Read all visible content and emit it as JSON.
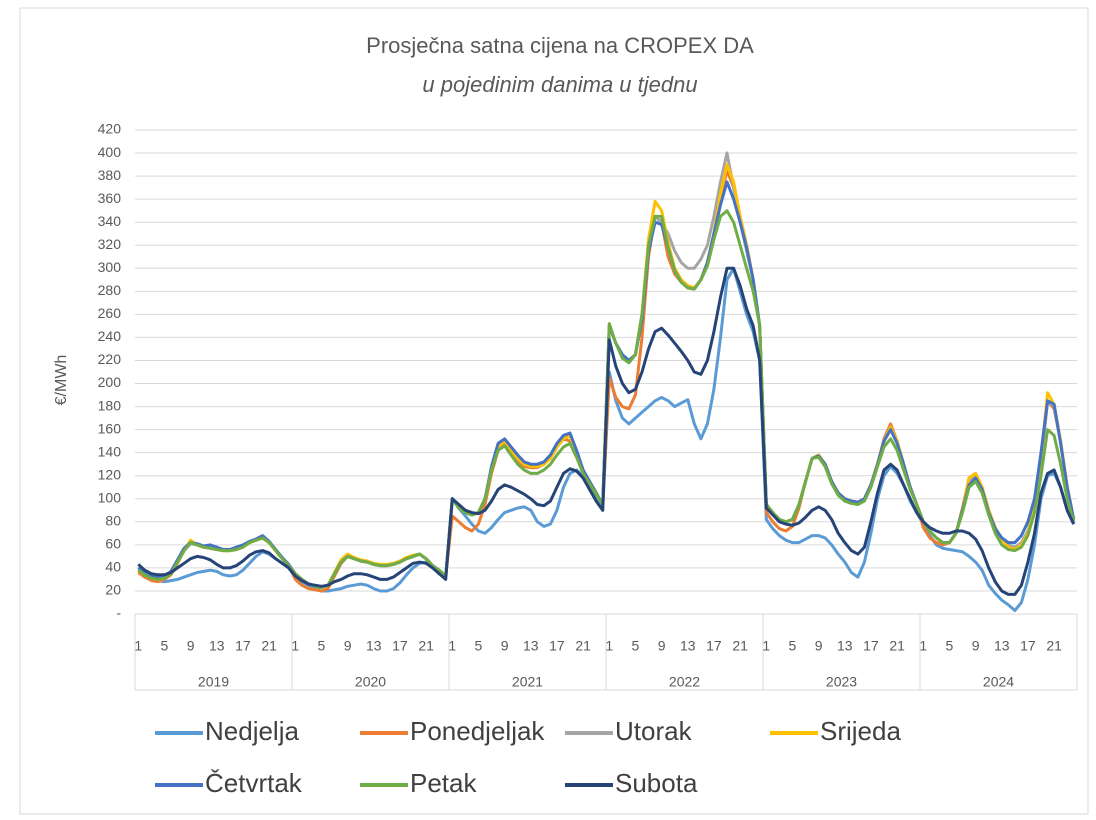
{
  "chart_data": {
    "type": "line",
    "title": "Prosječna satna cijena na CROPEX DA",
    "subtitle": "u pojedinim danima u tjednu",
    "y_label": "€/MWh",
    "categories": [
      "1",
      null,
      null,
      null,
      "5",
      null,
      null,
      null,
      "9",
      null,
      null,
      null,
      "13",
      null,
      null,
      null,
      "17",
      null,
      null,
      null,
      "21",
      null,
      null,
      null,
      "1",
      null,
      null,
      null,
      "5",
      null,
      null,
      null,
      "9",
      null,
      null,
      null,
      "13",
      null,
      null,
      null,
      "17",
      null,
      null,
      null,
      "21",
      null,
      null,
      null,
      "1",
      null,
      null,
      null,
      "5",
      null,
      null,
      null,
      "9",
      null,
      null,
      null,
      "13",
      null,
      null,
      null,
      "17",
      null,
      null,
      null,
      "21",
      null,
      null,
      null,
      "1",
      null,
      null,
      null,
      "5",
      null,
      null,
      null,
      "9",
      null,
      null,
      null,
      "13",
      null,
      null,
      null,
      "17",
      null,
      null,
      null,
      "21",
      null,
      null,
      null,
      "1",
      null,
      null,
      null,
      "5",
      null,
      null,
      null,
      "9",
      null,
      null,
      null,
      "13",
      null,
      null,
      null,
      "17",
      null,
      null,
      null,
      "21",
      null,
      null,
      null,
      "1",
      null,
      null,
      null,
      "5",
      null,
      null,
      null,
      "9",
      null,
      null,
      null,
      "13",
      null,
      null,
      null,
      "17",
      null,
      null,
      null,
      "21",
      null,
      null,
      null
    ],
    "x_groups": [
      "2019",
      "2020",
      "2021",
      "2022",
      "2023",
      "2024"
    ],
    "ylim": [
      0,
      420
    ],
    "yticks": [
      {
        "value": 0,
        "label": "-"
      },
      20,
      40,
      60,
      80,
      100,
      120,
      140,
      160,
      180,
      200,
      220,
      240,
      260,
      280,
      300,
      320,
      340,
      360,
      380,
      400,
      420
    ],
    "grid": true,
    "legend": "bottom",
    "series": [
      {
        "name": "Nedjelja",
        "color": "#5b9bd5",
        "values": [
          38,
          33,
          30,
          29,
          28,
          29,
          30,
          32,
          34,
          36,
          37,
          38,
          37,
          34,
          33,
          34,
          38,
          44,
          50,
          54,
          52,
          48,
          44,
          40,
          32,
          28,
          25,
          22,
          20,
          20,
          21,
          22,
          24,
          25,
          26,
          25,
          22,
          20,
          20,
          22,
          27,
          34,
          40,
          44,
          45,
          42,
          36,
          32,
          100,
          92,
          85,
          78,
          72,
          70,
          75,
          82,
          88,
          90,
          92,
          93,
          90,
          80,
          76,
          78,
          90,
          110,
          122,
          125,
          120,
          112,
          100,
          90,
          210,
          185,
          170,
          165,
          170,
          175,
          180,
          185,
          188,
          185,
          180,
          183,
          186,
          165,
          152,
          165,
          195,
          240,
          290,
          300,
          280,
          260,
          245,
          220,
          82,
          74,
          68,
          64,
          62,
          62,
          65,
          68,
          68,
          66,
          60,
          52,
          45,
          36,
          32,
          45,
          70,
          100,
          120,
          128,
          122,
          112,
          98,
          88,
          78,
          68,
          60,
          57,
          56,
          55,
          54,
          50,
          45,
          38,
          25,
          18,
          12,
          8,
          3,
          10,
          30,
          60,
          100,
          120,
          122,
          110,
          90,
          78
        ]
      },
      {
        "name": "Ponedjeljak",
        "color": "#ed7d31",
        "values": [
          36,
          32,
          29,
          28,
          30,
          34,
          44,
          55,
          62,
          60,
          58,
          57,
          56,
          55,
          55,
          56,
          58,
          62,
          64,
          66,
          62,
          55,
          48,
          42,
          30,
          25,
          22,
          21,
          20,
          22,
          33,
          44,
          50,
          48,
          46,
          45,
          43,
          42,
          42,
          43,
          45,
          48,
          50,
          52,
          48,
          42,
          38,
          33,
          85,
          80,
          75,
          72,
          78,
          95,
          122,
          142,
          148,
          140,
          133,
          128,
          127,
          127,
          130,
          135,
          145,
          152,
          150,
          138,
          125,
          115,
          105,
          95,
          205,
          188,
          180,
          178,
          190,
          240,
          310,
          345,
          340,
          310,
          295,
          288,
          283,
          282,
          290,
          305,
          330,
          360,
          385,
          370,
          345,
          320,
          290,
          250,
          88,
          80,
          74,
          72,
          76,
          92,
          115,
          135,
          138,
          130,
          115,
          105,
          100,
          98,
          97,
          100,
          112,
          130,
          152,
          165,
          150,
          130,
          110,
          95,
          75,
          66,
          62,
          60,
          62,
          70,
          92,
          118,
          122,
          110,
          90,
          75,
          65,
          58,
          56,
          60,
          70,
          90,
          130,
          185,
          178,
          150,
          110,
          82
        ]
      },
      {
        "name": "Utorak",
        "color": "#a5a5a5",
        "values": [
          38,
          34,
          31,
          30,
          31,
          35,
          45,
          55,
          61,
          60,
          58,
          57,
          56,
          55,
          55,
          56,
          58,
          62,
          64,
          66,
          62,
          55,
          48,
          42,
          35,
          30,
          26,
          24,
          23,
          25,
          35,
          45,
          50,
          48,
          46,
          45,
          43,
          42,
          42,
          43,
          45,
          48,
          50,
          52,
          48,
          42,
          38,
          33,
          100,
          92,
          88,
          86,
          88,
          100,
          125,
          145,
          150,
          142,
          135,
          130,
          128,
          128,
          130,
          135,
          145,
          152,
          155,
          140,
          125,
          115,
          105,
          95,
          250,
          235,
          225,
          220,
          225,
          260,
          320,
          345,
          340,
          330,
          315,
          305,
          300,
          300,
          308,
          320,
          345,
          375,
          400,
          370,
          340,
          315,
          290,
          250,
          95,
          88,
          82,
          80,
          82,
          95,
          115,
          135,
          138,
          130,
          115,
          105,
          100,
          98,
          97,
          100,
          112,
          130,
          150,
          162,
          150,
          130,
          110,
          95,
          80,
          72,
          66,
          62,
          62,
          70,
          90,
          115,
          120,
          110,
          90,
          75,
          65,
          60,
          58,
          62,
          72,
          92,
          132,
          185,
          180,
          150,
          110,
          82
        ]
      },
      {
        "name": "Srijeda",
        "color": "#ffc000",
        "values": [
          38,
          34,
          31,
          30,
          31,
          35,
          45,
          55,
          64,
          60,
          58,
          57,
          56,
          55,
          55,
          56,
          58,
          62,
          64,
          66,
          62,
          55,
          48,
          42,
          35,
          30,
          26,
          24,
          23,
          25,
          36,
          47,
          52,
          49,
          47,
          46,
          44,
          43,
          43,
          44,
          46,
          49,
          51,
          52,
          48,
          42,
          38,
          33,
          100,
          92,
          88,
          86,
          88,
          100,
          125,
          145,
          150,
          142,
          135,
          130,
          128,
          128,
          130,
          135,
          145,
          152,
          155,
          140,
          125,
          115,
          105,
          95,
          250,
          235,
          225,
          220,
          225,
          260,
          325,
          358,
          350,
          322,
          300,
          290,
          285,
          283,
          290,
          305,
          330,
          365,
          390,
          375,
          345,
          320,
          290,
          250,
          95,
          88,
          82,
          80,
          82,
          95,
          115,
          135,
          138,
          130,
          115,
          105,
          100,
          98,
          97,
          100,
          112,
          130,
          150,
          162,
          150,
          130,
          110,
          95,
          80,
          72,
          66,
          62,
          62,
          70,
          90,
          118,
          122,
          110,
          90,
          75,
          65,
          58,
          56,
          60,
          70,
          92,
          135,
          192,
          182,
          150,
          110,
          82
        ]
      },
      {
        "name": "Četvrtak",
        "color": "#4472c4",
        "values": [
          40,
          36,
          33,
          32,
          33,
          37,
          47,
          57,
          62,
          61,
          59,
          60,
          58,
          56,
          56,
          58,
          60,
          63,
          65,
          68,
          63,
          56,
          49,
          43,
          35,
          30,
          26,
          24,
          23,
          25,
          35,
          45,
          50,
          48,
          46,
          45,
          43,
          42,
          42,
          43,
          45,
          48,
          50,
          52,
          48,
          42,
          38,
          33,
          100,
          92,
          88,
          86,
          88,
          100,
          128,
          148,
          152,
          145,
          138,
          132,
          130,
          130,
          132,
          138,
          148,
          155,
          157,
          142,
          125,
          115,
          105,
          95,
          250,
          235,
          225,
          220,
          225,
          255,
          315,
          340,
          338,
          318,
          298,
          288,
          283,
          282,
          290,
          305,
          330,
          355,
          375,
          360,
          340,
          318,
          290,
          250,
          95,
          88,
          82,
          80,
          82,
          95,
          115,
          135,
          137,
          130,
          115,
          105,
          100,
          98,
          97,
          100,
          112,
          130,
          150,
          160,
          148,
          130,
          110,
          95,
          80,
          72,
          66,
          62,
          62,
          70,
          90,
          112,
          118,
          108,
          88,
          74,
          66,
          62,
          62,
          68,
          80,
          100,
          140,
          185,
          182,
          148,
          110,
          82
        ]
      },
      {
        "name": "Petak",
        "color": "#70ad47",
        "values": [
          38,
          34,
          31,
          30,
          31,
          35,
          45,
          55,
          62,
          60,
          58,
          57,
          56,
          55,
          55,
          56,
          58,
          62,
          64,
          66,
          62,
          55,
          48,
          42,
          35,
          30,
          26,
          24,
          23,
          25,
          35,
          45,
          50,
          48,
          46,
          45,
          43,
          42,
          42,
          43,
          45,
          48,
          50,
          52,
          48,
          42,
          38,
          33,
          100,
          92,
          88,
          86,
          88,
          100,
          125,
          142,
          146,
          138,
          130,
          125,
          122,
          122,
          125,
          130,
          138,
          145,
          148,
          136,
          122,
          113,
          104,
          95,
          252,
          235,
          222,
          218,
          225,
          260,
          320,
          345,
          345,
          318,
          298,
          288,
          283,
          282,
          290,
          302,
          325,
          345,
          350,
          340,
          320,
          300,
          280,
          250,
          95,
          88,
          82,
          80,
          82,
          95,
          115,
          135,
          136,
          128,
          113,
          103,
          98,
          96,
          95,
          98,
          110,
          128,
          145,
          152,
          142,
          125,
          108,
          95,
          80,
          72,
          66,
          62,
          62,
          70,
          88,
          110,
          115,
          105,
          86,
          70,
          60,
          56,
          55,
          58,
          68,
          88,
          120,
          160,
          155,
          130,
          100,
          80
        ]
      },
      {
        "name": "Subota",
        "color": "#264478",
        "values": [
          43,
          38,
          35,
          34,
          34,
          36,
          40,
          44,
          48,
          50,
          49,
          47,
          43,
          40,
          40,
          42,
          46,
          51,
          54,
          55,
          53,
          48,
          44,
          40,
          33,
          29,
          26,
          25,
          24,
          25,
          28,
          30,
          33,
          35,
          35,
          34,
          32,
          30,
          30,
          32,
          36,
          40,
          44,
          45,
          44,
          40,
          35,
          30,
          100,
          95,
          90,
          88,
          87,
          90,
          98,
          108,
          112,
          110,
          107,
          104,
          100,
          95,
          94,
          98,
          110,
          122,
          126,
          124,
          118,
          108,
          98,
          90,
          238,
          215,
          200,
          192,
          195,
          210,
          230,
          245,
          248,
          242,
          235,
          228,
          220,
          210,
          208,
          220,
          245,
          275,
          300,
          300,
          285,
          265,
          250,
          220,
          92,
          86,
          80,
          78,
          77,
          79,
          84,
          90,
          93,
          90,
          82,
          70,
          62,
          55,
          52,
          58,
          80,
          105,
          125,
          130,
          125,
          112,
          100,
          88,
          80,
          75,
          72,
          70,
          70,
          72,
          72,
          70,
          65,
          55,
          40,
          28,
          20,
          17,
          17,
          25,
          45,
          70,
          105,
          122,
          125,
          110,
          90,
          78
        ]
      }
    ]
  }
}
